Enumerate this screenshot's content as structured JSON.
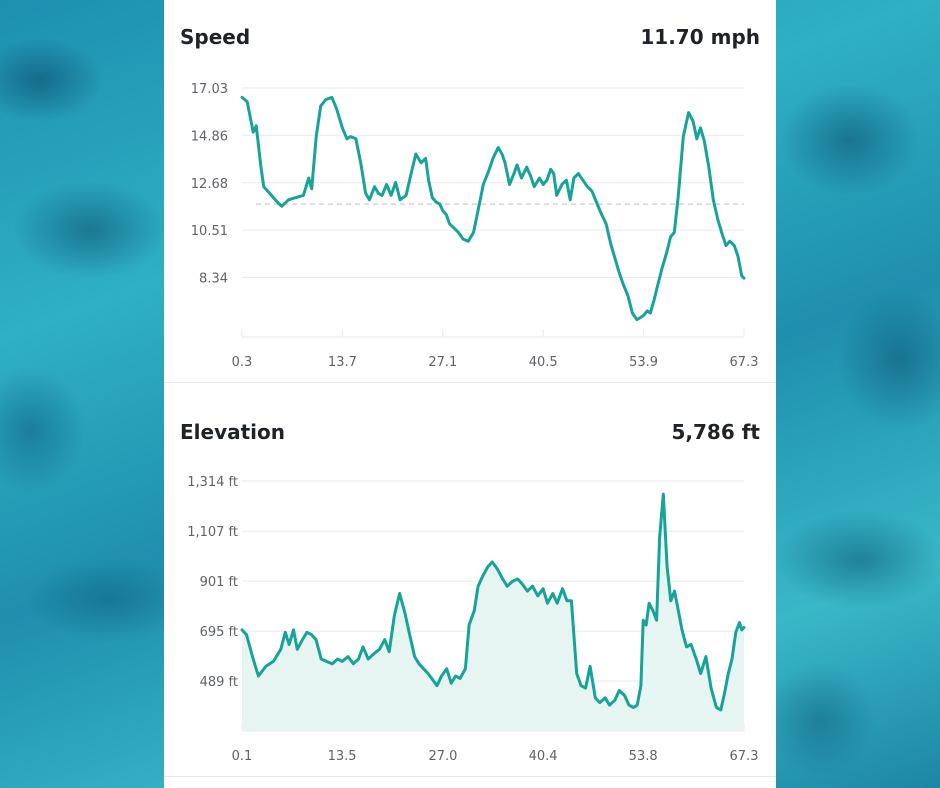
{
  "colors": {
    "line": "#17a398",
    "area_fill": "#e6f4f2",
    "grid": "#e8eaec",
    "average_line": "#c9cdd1",
    "panel_bg": "#ffffff"
  },
  "chart_data": [
    {
      "type": "line",
      "title": "Speed",
      "summary_value": "11.70 mph",
      "y_ticks": [
        "17.03",
        "14.86",
        "12.68",
        "10.51",
        "8.34"
      ],
      "x_ticks": [
        "0.3",
        "13.7",
        "27.1",
        "40.5",
        "53.9",
        "67.3"
      ],
      "xlim": [
        0.3,
        67.3
      ],
      "ylim": [
        6.2,
        17.03
      ],
      "average": 11.7,
      "grid": true,
      "series": [
        {
          "x": [
            0.3,
            1.0,
            1.8,
            2.2,
            2.8,
            3.2,
            4.0,
            5.0,
            5.6,
            6.5,
            7.5,
            8.5,
            9.2,
            9.6,
            10.2,
            10.8,
            11.5,
            12.3,
            12.9,
            13.7,
            14.3,
            14.8,
            15.5,
            16.2,
            16.8,
            17.3,
            18.0,
            18.5,
            19.0,
            19.6,
            20.2,
            20.8,
            21.4,
            22.2,
            22.8,
            23.5,
            24.2,
            24.8,
            25.2,
            25.7,
            26.2,
            26.7,
            27.1,
            27.6,
            28.0,
            28.6,
            29.2,
            29.8,
            30.5,
            31.2,
            31.8,
            32.5,
            33.2,
            33.8,
            34.5,
            35.0,
            35.4,
            36.0,
            36.6,
            37.0,
            37.6,
            38.3,
            38.8,
            39.3,
            40.0,
            40.5,
            41.0,
            41.5,
            41.9,
            42.3,
            43.0,
            43.6,
            44.1,
            44.6,
            45.2,
            45.8,
            46.4,
            47.0,
            47.6,
            48.2,
            48.9,
            49.5,
            50.0,
            50.6,
            51.2,
            51.8,
            52.4,
            53.0,
            53.5,
            53.9,
            54.4,
            54.8,
            55.3,
            55.8,
            56.4,
            57.0,
            57.5,
            58.0,
            58.5,
            59.2,
            59.9,
            60.5,
            61.0,
            61.5,
            62.0,
            62.6,
            63.2,
            63.8,
            64.4,
            64.9,
            65.4,
            66.0,
            66.5,
            67.0,
            67.3
          ],
          "values": [
            16.6,
            16.4,
            15.0,
            15.3,
            13.5,
            12.5,
            12.2,
            11.8,
            11.6,
            11.9,
            12.0,
            12.1,
            12.9,
            12.4,
            14.8,
            16.2,
            16.5,
            16.6,
            16.1,
            15.2,
            14.7,
            14.8,
            14.7,
            13.5,
            12.2,
            11.9,
            12.5,
            12.2,
            12.1,
            12.6,
            12.1,
            12.7,
            11.9,
            12.1,
            13.0,
            14.0,
            13.6,
            13.8,
            12.8,
            12.0,
            11.8,
            11.7,
            11.4,
            11.2,
            10.8,
            10.6,
            10.4,
            10.1,
            10.0,
            10.4,
            11.4,
            12.6,
            13.2,
            13.8,
            14.3,
            14.0,
            13.6,
            12.6,
            13.1,
            13.5,
            12.9,
            13.4,
            13.0,
            12.5,
            12.9,
            12.6,
            12.8,
            13.3,
            13.1,
            12.1,
            12.6,
            12.8,
            11.9,
            12.9,
            13.1,
            12.8,
            12.5,
            12.3,
            11.8,
            11.3,
            10.8,
            9.9,
            9.3,
            8.6,
            8.0,
            7.5,
            6.7,
            6.4,
            6.5,
            6.6,
            6.8,
            6.7,
            7.3,
            8.0,
            8.8,
            9.5,
            10.2,
            10.4,
            12.0,
            14.8,
            15.9,
            15.5,
            14.7,
            15.2,
            14.6,
            13.4,
            11.9,
            11.0,
            10.3,
            9.8,
            10.0,
            9.8,
            9.3,
            8.4,
            8.3
          ]
        }
      ]
    },
    {
      "type": "area",
      "title": "Elevation",
      "summary_value": "5,786 ft",
      "y_ticks": [
        "1,314 ft",
        "1,107 ft",
        "901 ft",
        "695 ft",
        "489 ft"
      ],
      "x_ticks": [
        "0.1",
        "13.5",
        "27.0",
        "40.4",
        "53.8",
        "67.3"
      ],
      "xlim": [
        0.1,
        67.3
      ],
      "ylim": [
        283,
        1314
      ],
      "grid": true,
      "series": [
        {
          "x": [
            0.1,
            0.7,
            1.5,
            2.3,
            3.3,
            4.3,
            5.3,
            5.9,
            6.4,
            7.0,
            7.5,
            8.2,
            8.8,
            9.4,
            10.0,
            10.7,
            11.4,
            12.2,
            12.9,
            13.5,
            14.3,
            15.0,
            15.7,
            16.3,
            17.0,
            17.7,
            18.5,
            19.2,
            19.8,
            20.5,
            21.2,
            21.9,
            22.4,
            23.2,
            23.8,
            24.4,
            25.0,
            25.5,
            26.2,
            26.8,
            27.5,
            28.1,
            28.7,
            29.3,
            30.0,
            30.5,
            31.2,
            31.7,
            32.3,
            33.0,
            33.6,
            34.3,
            35.0,
            35.6,
            36.3,
            37.0,
            37.6,
            38.3,
            39.0,
            39.7,
            40.4,
            41.0,
            41.7,
            42.3,
            43.0,
            43.6,
            44.2,
            44.9,
            45.5,
            46.1,
            46.7,
            47.4,
            48.0,
            48.7,
            49.3,
            50.0,
            50.6,
            51.3,
            51.9,
            52.5,
            53.0,
            53.5,
            53.8,
            54.2,
            54.6,
            55.1,
            55.6,
            56.0,
            56.5,
            57.0,
            57.5,
            58.0,
            58.5,
            59.0,
            59.6,
            60.2,
            60.9,
            61.5,
            62.2,
            62.9,
            63.6,
            64.2,
            64.7,
            65.2,
            65.7,
            66.2,
            66.7,
            67.0,
            67.3
          ],
          "values": [
            700,
            680,
            590,
            510,
            550,
            570,
            620,
            690,
            640,
            700,
            620,
            660,
            690,
            680,
            660,
            580,
            570,
            560,
            580,
            570,
            590,
            560,
            580,
            630,
            580,
            600,
            620,
            660,
            610,
            760,
            850,
            770,
            700,
            590,
            560,
            540,
            520,
            500,
            470,
            510,
            540,
            480,
            510,
            500,
            540,
            720,
            780,
            880,
            920,
            960,
            980,
            950,
            910,
            880,
            900,
            910,
            890,
            860,
            880,
            840,
            870,
            810,
            850,
            810,
            870,
            820,
            820,
            520,
            470,
            460,
            550,
            420,
            400,
            420,
            390,
            410,
            450,
            430,
            390,
            380,
            390,
            470,
            740,
            720,
            810,
            780,
            740,
            1080,
            1260,
            960,
            820,
            860,
            780,
            700,
            630,
            640,
            580,
            520,
            590,
            460,
            380,
            370,
            440,
            520,
            580,
            690,
            730,
            700,
            710
          ]
        }
      ]
    }
  ]
}
